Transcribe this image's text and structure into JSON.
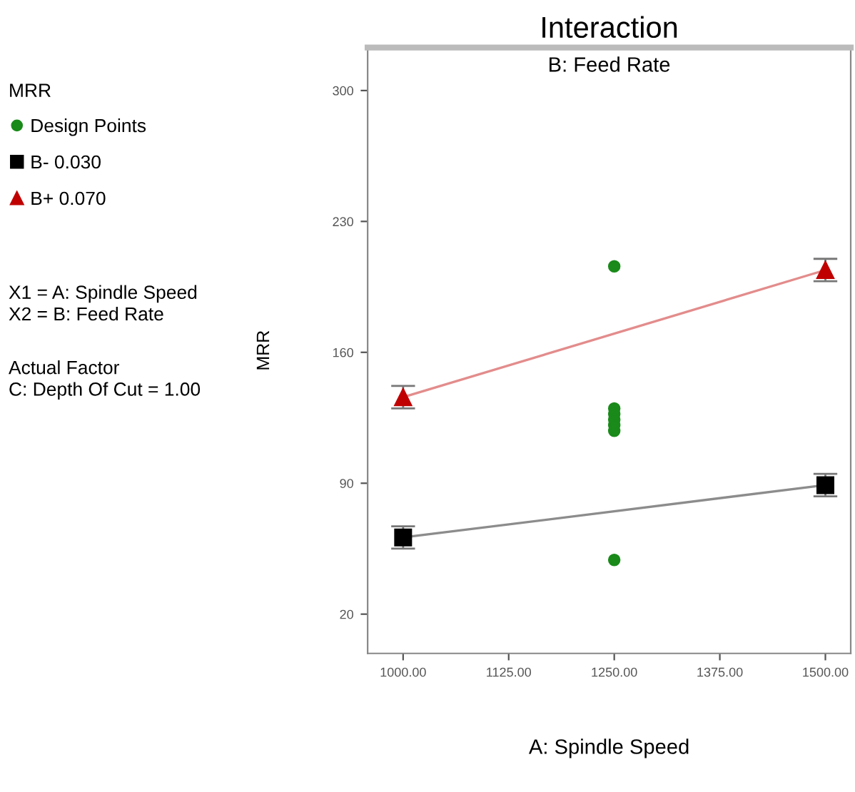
{
  "chart_data": {
    "type": "line",
    "title": "Interaction",
    "subtitle": "B: Feed Rate",
    "xlabel": "A: Spindle Speed",
    "ylabel": "MRR",
    "xlim": [
      958,
      1530
    ],
    "xticks": [
      {
        "value": 1000,
        "label": "1000.00"
      },
      {
        "value": 1125,
        "label": "1125.00"
      },
      {
        "value": 1250,
        "label": "1250.00"
      },
      {
        "value": 1375,
        "label": "1375.00"
      },
      {
        "value": 1500,
        "label": "1500.00"
      }
    ],
    "ylim": [
      -1,
      323
    ],
    "yticks": [
      20,
      90,
      160,
      230,
      300
    ],
    "series": [
      {
        "name": "Design Points",
        "type": "scatter",
        "marker": "circle",
        "color": "#1a8a1a",
        "x": [
          1250,
          1250,
          1250,
          1250,
          1250,
          1250,
          1250
        ],
        "values": [
          206,
          130,
          127,
          124,
          121,
          118,
          49
        ]
      },
      {
        "name": "B- 0.030",
        "marker": "square",
        "color": "#000000",
        "x": [
          1000,
          1500
        ],
        "values": [
          61,
          89
        ],
        "errors": [
          6,
          6
        ]
      },
      {
        "name": "B+ 0.070",
        "marker": "triangle",
        "color": "#c00000",
        "x": [
          1000,
          1500
        ],
        "values": [
          136,
          204
        ],
        "errors": [
          6,
          6
        ]
      }
    ],
    "legend": "left",
    "annotations": [
      "MRR",
      "X1 = A: Spindle Speed\nX2 = B: Feed Rate",
      "Actual Factor\nC: Depth Of Cut = 1.00"
    ],
    "grid": false
  }
}
